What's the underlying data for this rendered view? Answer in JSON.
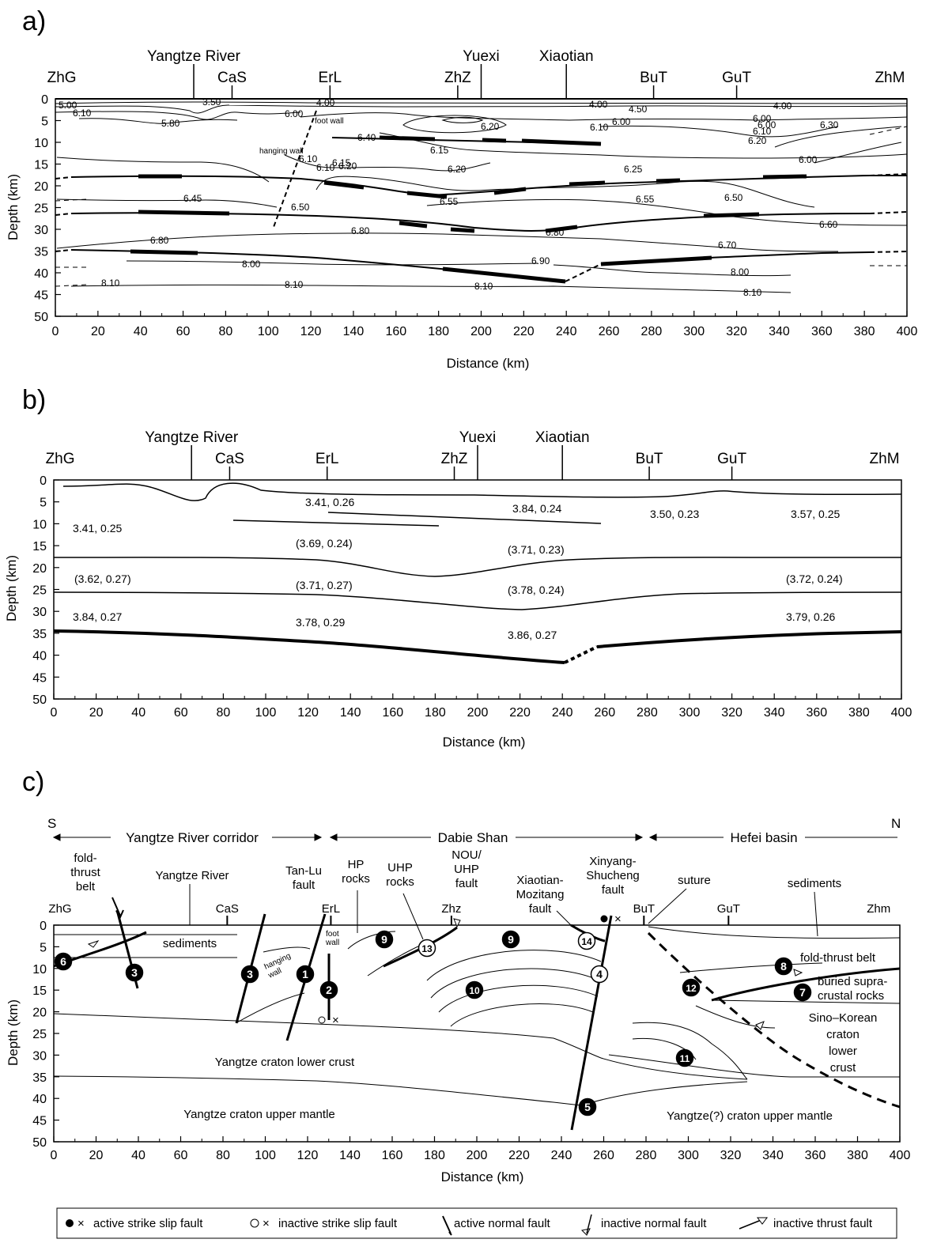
{
  "panels": [
    {
      "id": "a",
      "label": "a)"
    },
    {
      "id": "b",
      "label": "b)"
    },
    {
      "id": "c",
      "label": "c)"
    }
  ],
  "axes": {
    "xlabel": "Distance (km)",
    "ylabel": "Depth (km)",
    "xticks": [
      "0",
      "20",
      "40",
      "60",
      "80",
      "100",
      "120",
      "140",
      "160",
      "180",
      "200",
      "220",
      "240",
      "260",
      "280",
      "300",
      "320",
      "340",
      "360",
      "380",
      "400"
    ],
    "yticks": [
      "0",
      "5",
      "10",
      "15",
      "20",
      "25",
      "30",
      "35",
      "40",
      "45",
      "50"
    ]
  },
  "locations_ab": {
    "upper": [
      {
        "name": "Yangtze River",
        "x": 65
      },
      {
        "name": "Yuexi",
        "x": 200
      },
      {
        "name": "Xiaotian",
        "x": 240
      }
    ],
    "lower": [
      {
        "name": "ZhG",
        "x": 3
      },
      {
        "name": "CaS",
        "x": 83
      },
      {
        "name": "ErL",
        "x": 129
      },
      {
        "name": "ZhZ",
        "x": 189
      },
      {
        "name": "BuT",
        "x": 281
      },
      {
        "name": "GuT",
        "x": 320
      },
      {
        "name": "ZhM",
        "x": 392
      }
    ]
  },
  "locations_c": [
    {
      "name": "ZhG",
      "x": 3
    },
    {
      "name": "CaS",
      "x": 82
    },
    {
      "name": "ErL",
      "x": 131
    },
    {
      "name": "Zhz",
      "x": 188
    },
    {
      "name": "BuT",
      "x": 279
    },
    {
      "name": "GuT",
      "x": 319
    },
    {
      "name": "Zhm",
      "x": 390
    }
  ],
  "contours_a": [
    "5.00",
    "3.50",
    "4.00",
    "4.00",
    "4.50",
    "4.00",
    "6.10",
    "6.00",
    "6.00",
    "5.80",
    "6.20",
    "6.10",
    "6.00",
    "6.00",
    "6.10",
    "6.30",
    "6.20",
    "6.40",
    "6.15",
    "6.10",
    "6.10",
    "6.15",
    "6.20",
    "6.20",
    "6.25",
    "6.00",
    "6.45",
    "6.50",
    "6.55",
    "6.55",
    "6.50",
    "6.60",
    "6.80",
    "6.80",
    "6.80",
    "6.70",
    "8.00",
    "6.90",
    "8.00",
    "8.10",
    "8.10",
    "8.10",
    "8.10"
  ],
  "annot_a": {
    "foot_wall": "foot wall",
    "hanging_wall": "hanging wall"
  },
  "values_b": [
    "3.41, 0.26",
    "3.84, 0.24",
    "3.41, 0.25",
    "3.50, 0.23",
    "3.57, 0.25",
    "(3.69, 0.24)",
    "(3.71, 0.23)",
    "(3.62, 0.27)",
    "(3.71, 0.27)",
    "(3.78, 0.24)",
    "(3.72, 0.24)",
    "3.84, 0.27",
    "3.78, 0.29",
    "3.79, 0.26",
    "3.86, 0.27"
  ],
  "c_regions": {
    "S": "S",
    "N": "N",
    "corridor": "Yangtze River corridor",
    "dabie": "Dabie Shan",
    "hefei": "Hefei basin"
  },
  "c_labels": {
    "fold_thrust_belt": "fold-\nthrust\nbelt",
    "yangtze_river": "Yangtze River",
    "tanlu": "Tan-Lu\nfault",
    "hp": "HP\nrocks",
    "uhp": "UHP\nrocks",
    "nou": "NOU/\nUHP\nfault",
    "xiaotian_fault": "Xiaotian-\nMozitang\nfault",
    "xinyang": "Xinyang-\nShucheng\nfault",
    "suture": "suture",
    "sediments_n": "sediments",
    "sediments_s": "sediments",
    "foot_wall": "foot\nwall",
    "hanging_wall": "hanging\nwall",
    "fold_thrust_belt_n": "fold-thrust belt",
    "buried": "buried supra-\ncrustal rocks",
    "sino": "Sino–Korean\ncraton\nlower\ncrust",
    "lower_crust": "Yangtze craton lower crust",
    "upper_mantle": "Yangtze craton upper mantle",
    "upper_mantle_n": "Yangtze(?) craton upper mantle"
  },
  "c_numbers": [
    "1",
    "2",
    "3",
    "3",
    "4",
    "5",
    "6",
    "7",
    "8",
    "9",
    "9",
    "10",
    "11",
    "12",
    "13",
    "14"
  ],
  "legend": [
    "active strike slip fault",
    "inactive strike slip fault",
    "active normal fault",
    "inactive normal fault",
    "inactive thrust fault"
  ]
}
